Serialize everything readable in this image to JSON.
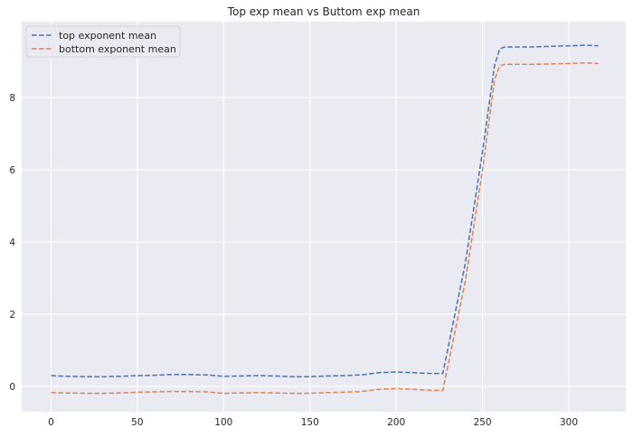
{
  "chart_data": {
    "type": "line",
    "title": "Top exp mean vs Buttom exp mean",
    "xlabel": "",
    "ylabel": "",
    "xlim": [
      -17,
      333
    ],
    "ylim": [
      -0.7,
      10.1
    ],
    "xticks": [
      0,
      50,
      100,
      150,
      200,
      250,
      300
    ],
    "yticks": [
      0,
      2,
      4,
      6,
      8
    ],
    "grid": true,
    "legend_position": "top-left",
    "background": "#eaeaf2",
    "series": [
      {
        "name": "top exponent mean",
        "color": "#4c72b0",
        "points": [
          [
            0,
            0.3
          ],
          [
            10,
            0.28
          ],
          [
            20,
            0.27
          ],
          [
            30,
            0.27
          ],
          [
            40,
            0.28
          ],
          [
            50,
            0.3
          ],
          [
            60,
            0.31
          ],
          [
            70,
            0.33
          ],
          [
            80,
            0.33
          ],
          [
            90,
            0.32
          ],
          [
            100,
            0.28
          ],
          [
            110,
            0.29
          ],
          [
            120,
            0.3
          ],
          [
            130,
            0.29
          ],
          [
            140,
            0.27
          ],
          [
            150,
            0.27
          ],
          [
            160,
            0.29
          ],
          [
            170,
            0.3
          ],
          [
            180,
            0.32
          ],
          [
            190,
            0.38
          ],
          [
            200,
            0.4
          ],
          [
            210,
            0.38
          ],
          [
            220,
            0.36
          ],
          [
            227,
            0.36
          ],
          [
            240,
            3.4
          ],
          [
            250,
            6.5
          ],
          [
            257,
            8.9
          ],
          [
            260,
            9.35
          ],
          [
            263,
            9.4
          ],
          [
            270,
            9.4
          ],
          [
            280,
            9.4
          ],
          [
            290,
            9.42
          ],
          [
            300,
            9.43
          ],
          [
            310,
            9.45
          ],
          [
            317,
            9.43
          ]
        ]
      },
      {
        "name": "bottom exponent mean",
        "color": "#dd8452",
        "points": [
          [
            0,
            -0.17
          ],
          [
            10,
            -0.18
          ],
          [
            20,
            -0.19
          ],
          [
            30,
            -0.19
          ],
          [
            40,
            -0.18
          ],
          [
            50,
            -0.16
          ],
          [
            60,
            -0.15
          ],
          [
            70,
            -0.14
          ],
          [
            80,
            -0.14
          ],
          [
            90,
            -0.15
          ],
          [
            100,
            -0.19
          ],
          [
            110,
            -0.18
          ],
          [
            120,
            -0.17
          ],
          [
            130,
            -0.18
          ],
          [
            140,
            -0.19
          ],
          [
            150,
            -0.19
          ],
          [
            160,
            -0.17
          ],
          [
            170,
            -0.16
          ],
          [
            180,
            -0.14
          ],
          [
            190,
            -0.08
          ],
          [
            200,
            -0.06
          ],
          [
            210,
            -0.08
          ],
          [
            220,
            -0.11
          ],
          [
            227,
            -0.11
          ],
          [
            240,
            2.9
          ],
          [
            250,
            6.0
          ],
          [
            257,
            8.5
          ],
          [
            260,
            8.88
          ],
          [
            263,
            8.92
          ],
          [
            270,
            8.92
          ],
          [
            280,
            8.92
          ],
          [
            290,
            8.93
          ],
          [
            300,
            8.94
          ],
          [
            310,
            8.96
          ],
          [
            317,
            8.94
          ]
        ]
      }
    ]
  }
}
